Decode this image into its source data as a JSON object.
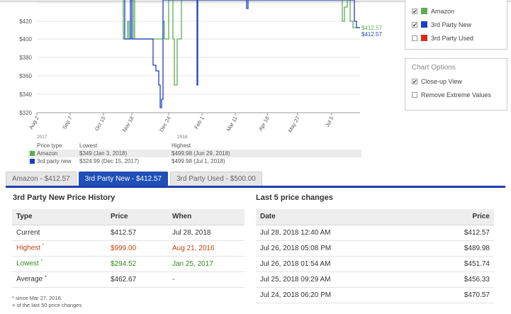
{
  "chart": {
    "y_ticks": [
      "$420",
      "$400",
      "$380",
      "$360",
      "$340",
      "$320"
    ],
    "x_ticks": [
      "Aug 2",
      "Sep 7",
      "Oct 15",
      "Nov 18",
      "Dec 24",
      "Feb 1",
      "Mar 11",
      "Apr 18",
      "May 27",
      "Jul 5"
    ],
    "year_labels": [
      "2017",
      "2018"
    ],
    "end_labels": {
      "amazon": "$412.57",
      "third_party_new": "$412.57"
    },
    "colors": {
      "amazon": "#5cac55",
      "third_party_new": "#1a3fc9",
      "third_party_used": "#d42c1c"
    }
  },
  "legend_table": {
    "headers": [
      "Price type",
      "Lowest",
      "Highest"
    ],
    "rows": [
      {
        "name": "Amazon",
        "lowest": "$349 (Jan 3, 2018)",
        "highest": "$499.98 (Jun 29, 2018)"
      },
      {
        "name": "3rd party new",
        "lowest": "$324.99 (Dec 15, 2017)",
        "highest": "$499.98 (Jul 1, 2018)"
      }
    ]
  },
  "series_panel": {
    "items": [
      {
        "label": "Amazon",
        "checked": "✔"
      },
      {
        "label": "3rd Party New",
        "checked": "✔"
      },
      {
        "label": "3rd Party Used",
        "checked": ""
      }
    ]
  },
  "options_panel": {
    "title": "Chart Options",
    "items": [
      {
        "label": "Close-up View",
        "checked": "✔"
      },
      {
        "label": "Remove Extreme Values",
        "checked": ""
      }
    ]
  },
  "tabs": [
    {
      "label": "Amazon - $412.57"
    },
    {
      "label": "3rd Party New - $412.57"
    },
    {
      "label": "3rd Party Used - $500.00"
    }
  ],
  "history": {
    "title": "3rd Party New Price History",
    "headers": [
      "Type",
      "Price",
      "When"
    ],
    "rows": [
      {
        "type": "Current",
        "price": "$412.57",
        "when": "Jul 28, 2018"
      },
      {
        "type": "Highest",
        "mark": "*",
        "price": "$999.00",
        "when": "Aug 21, 2016"
      },
      {
        "type": "Lowest",
        "mark": "*",
        "price": "$294.52",
        "when": "Jan 25, 2017"
      },
      {
        "type": "Average",
        "mark": "+",
        "price": "$462.67",
        "when": "-"
      }
    ],
    "footnotes": [
      "* since Mar 27, 2016.",
      "+ of the last 50 price changes"
    ]
  },
  "changes": {
    "title": "Last 5 price changes",
    "headers": [
      "Date",
      "Price"
    ],
    "rows": [
      {
        "date": "Jul 28, 2018 12:40 AM",
        "price": "$412.57"
      },
      {
        "date": "Jul 26, 2018 05:08 PM",
        "price": "$489.98"
      },
      {
        "date": "Jul 26, 2018 01:54 AM",
        "price": "$451.74"
      },
      {
        "date": "Jul 25, 2018 09:29 AM",
        "price": "$456.33"
      },
      {
        "date": "Jul 24, 2018 06:20 PM",
        "price": "$470.57"
      }
    ]
  }
}
